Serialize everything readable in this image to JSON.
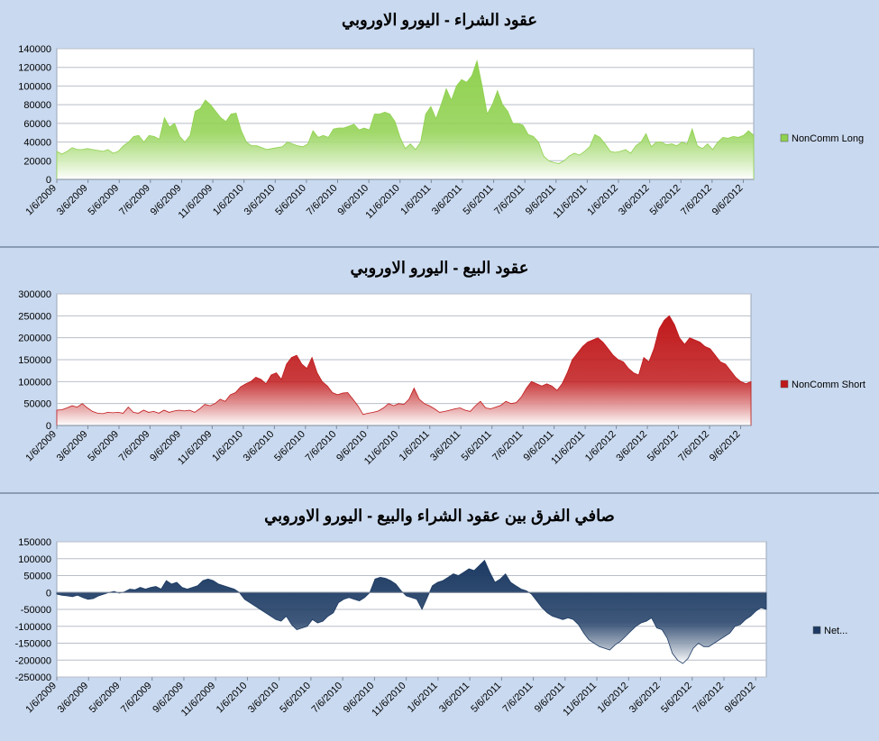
{
  "chart_data": [
    {
      "type": "area",
      "title": "عقود الشراء - اليورو الاوروبي",
      "ylim": [
        0,
        140000
      ],
      "yticks": [
        "0",
        "20000",
        "40000",
        "60000",
        "80000",
        "100000",
        "120000",
        "140000"
      ],
      "xticks": [
        "1/6/2009",
        "3/6/2009",
        "5/6/2009",
        "7/6/2009",
        "9/6/2009",
        "11/6/2009",
        "1/6/2010",
        "3/6/2010",
        "5/6/2010",
        "7/6/2010",
        "9/6/2010",
        "11/6/2010",
        "1/6/2011",
        "3/6/2011",
        "5/6/2011",
        "7/6/2011",
        "9/6/2011",
        "11/6/2011",
        "1/6/2012",
        "3/6/2012",
        "5/6/2012",
        "7/6/2012",
        "9/6/2012"
      ],
      "legend": "right",
      "series": [
        {
          "name": "NonComm Long",
          "color": "#8fd14f",
          "values": [
            30000,
            27000,
            30000,
            34000,
            32000,
            32000,
            33000,
            32000,
            31000,
            30000,
            32000,
            28000,
            30000,
            36000,
            40000,
            46000,
            47000,
            40000,
            47000,
            46000,
            43000,
            66000,
            56000,
            60000,
            46000,
            40000,
            47000,
            73000,
            76000,
            85000,
            80000,
            73000,
            66000,
            62000,
            70000,
            71000,
            52000,
            40000,
            36000,
            36000,
            34000,
            32000,
            33000,
            34000,
            35000,
            40000,
            38000,
            36000,
            35000,
            38000,
            52000,
            45000,
            47000,
            45000,
            54000,
            55000,
            55000,
            57000,
            59000,
            53000,
            55000,
            53000,
            70000,
            70000,
            72000,
            70000,
            62000,
            45000,
            33000,
            38000,
            32000,
            40000,
            70000,
            78000,
            65000,
            80000,
            97000,
            85000,
            100000,
            107000,
            104000,
            111000,
            127000,
            100000,
            70000,
            80000,
            95000,
            80000,
            73000,
            60000,
            60000,
            58000,
            48000,
            46000,
            40000,
            25000,
            20000,
            18000,
            17000,
            20000,
            25000,
            28000,
            26000,
            30000,
            35000,
            48000,
            45000,
            38000,
            30000,
            29000,
            30000,
            32000,
            28000,
            36000,
            40000,
            49000,
            35000,
            40000,
            40000,
            37000,
            38000,
            36000,
            40000,
            38000,
            54000,
            36000,
            33000,
            38000,
            32000,
            40000,
            45000,
            44000,
            46000,
            45000,
            47000,
            52000,
            47000
          ]
        }
      ]
    },
    {
      "type": "area",
      "title": "عقود البيع - اليورو الاوروبي",
      "ylim": [
        0,
        300000
      ],
      "yticks": [
        "0",
        "50000",
        "100000",
        "150000",
        "200000",
        "250000",
        "300000"
      ],
      "xticks": [
        "1/6/2009",
        "3/6/2009",
        "5/6/2009",
        "7/6/2009",
        "9/6/2009",
        "11/6/2009",
        "1/6/2010",
        "3/6/2010",
        "5/6/2010",
        "7/6/2010",
        "9/6/2010",
        "11/6/2010",
        "1/6/2011",
        "3/6/2011",
        "5/6/2011",
        "7/6/2011",
        "9/6/2011",
        "11/6/2011",
        "1/6/2012",
        "3/6/2012",
        "5/6/2012",
        "7/6/2012",
        "9/6/2012"
      ],
      "legend": "right",
      "series": [
        {
          "name": "NonComm Short",
          "color": "#c0191b",
          "values": [
            35000,
            36000,
            40000,
            45000,
            42000,
            50000,
            40000,
            32000,
            28000,
            27000,
            30000,
            29000,
            30000,
            28000,
            42000,
            30000,
            28000,
            35000,
            30000,
            32000,
            28000,
            35000,
            30000,
            33000,
            35000,
            33000,
            35000,
            30000,
            38000,
            48000,
            45000,
            50000,
            60000,
            55000,
            70000,
            75000,
            88000,
            95000,
            100000,
            110000,
            105000,
            95000,
            115000,
            120000,
            105000,
            140000,
            155000,
            160000,
            140000,
            130000,
            155000,
            120000,
            100000,
            90000,
            75000,
            70000,
            74000,
            75000,
            60000,
            45000,
            25000,
            28000,
            30000,
            33000,
            40000,
            50000,
            45000,
            50000,
            48000,
            60000,
            85000,
            60000,
            50000,
            45000,
            38000,
            30000,
            32000,
            35000,
            38000,
            40000,
            35000,
            32000,
            45000,
            55000,
            40000,
            38000,
            42000,
            46000,
            55000,
            50000,
            52000,
            65000,
            85000,
            100000,
            95000,
            90000,
            95000,
            90000,
            80000,
            95000,
            120000,
            150000,
            165000,
            180000,
            190000,
            195000,
            200000,
            190000,
            175000,
            160000,
            150000,
            145000,
            130000,
            120000,
            115000,
            155000,
            145000,
            175000,
            220000,
            240000,
            250000,
            230000,
            200000,
            185000,
            200000,
            195000,
            190000,
            180000,
            175000,
            160000,
            145000,
            140000,
            125000,
            110000,
            100000,
            95000,
            100000
          ]
        }
      ]
    },
    {
      "type": "area",
      "title": "صافي الفرق بين عقود الشراء والبيع - اليورو الاوروبي",
      "ylim": [
        -250000,
        150000
      ],
      "yticks": [
        "-250000",
        "-200000",
        "-150000",
        "-100000",
        "-50000",
        "0",
        "50000",
        "100000",
        "150000"
      ],
      "xticks": [
        "1/6/2009",
        "3/6/2009",
        "5/6/2009",
        "7/6/2009",
        "9/6/2009",
        "11/6/2009",
        "1/6/2010",
        "3/6/2010",
        "5/6/2010",
        "7/6/2010",
        "9/6/2010",
        "11/6/2010",
        "1/6/2011",
        "3/6/2011",
        "5/6/2011",
        "7/6/2011",
        "9/6/2011",
        "11/6/2011",
        "1/6/2012",
        "3/6/2012",
        "5/6/2012",
        "7/6/2012",
        "9/6/2012"
      ],
      "legend": "right",
      "series": [
        {
          "name": "Net...",
          "color": "#1c3a63",
          "values": [
            -5000,
            -8000,
            -10000,
            -12000,
            -8000,
            -15000,
            -20000,
            -18000,
            -10000,
            -5000,
            0,
            3000,
            -2000,
            2000,
            10000,
            8000,
            15000,
            10000,
            15000,
            18000,
            10000,
            35000,
            25000,
            30000,
            15000,
            10000,
            15000,
            20000,
            35000,
            40000,
            35000,
            25000,
            20000,
            15000,
            10000,
            0,
            -20000,
            -30000,
            -40000,
            -50000,
            -60000,
            -70000,
            -80000,
            -85000,
            -70000,
            -95000,
            -110000,
            -105000,
            -100000,
            -80000,
            -90000,
            -85000,
            -70000,
            -60000,
            -30000,
            -20000,
            -15000,
            -20000,
            -25000,
            -15000,
            0,
            40000,
            45000,
            42000,
            35000,
            25000,
            5000,
            -10000,
            -15000,
            -20000,
            -50000,
            -15000,
            20000,
            30000,
            35000,
            45000,
            55000,
            50000,
            60000,
            70000,
            65000,
            80000,
            95000,
            60000,
            30000,
            40000,
            55000,
            30000,
            20000,
            10000,
            5000,
            -5000,
            -25000,
            -45000,
            -60000,
            -70000,
            -75000,
            -80000,
            -75000,
            -80000,
            -95000,
            -120000,
            -140000,
            -150000,
            -160000,
            -165000,
            -170000,
            -155000,
            -145000,
            -130000,
            -115000,
            -100000,
            -90000,
            -85000,
            -75000,
            -105000,
            -110000,
            -135000,
            -180000,
            -200000,
            -210000,
            -195000,
            -165000,
            -150000,
            -160000,
            -160000,
            -150000,
            -140000,
            -130000,
            -120000,
            -100000,
            -95000,
            -80000,
            -70000,
            -55000,
            -45000,
            -50000
          ]
        }
      ]
    }
  ]
}
